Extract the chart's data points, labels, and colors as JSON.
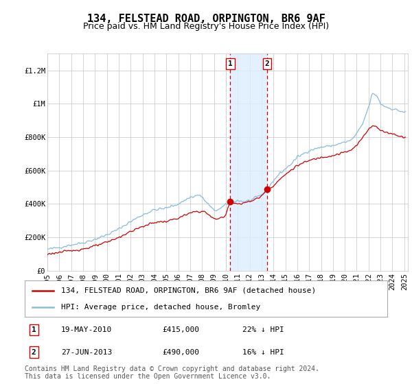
{
  "title": "134, FELSTEAD ROAD, ORPINGTON, BR6 9AF",
  "subtitle": "Price paid vs. HM Land Registry's House Price Index (HPI)",
  "ylim": [
    0,
    1300000
  ],
  "yticks": [
    0,
    200000,
    400000,
    600000,
    800000,
    1000000,
    1200000
  ],
  "ytick_labels": [
    "£0",
    "£200K",
    "£400K",
    "£600K",
    "£800K",
    "£1M",
    "£1.2M"
  ],
  "x_start_year": 1995,
  "x_end_year": 2025,
  "t1_year": 2010.375,
  "t2_year": 2013.458,
  "t1_price": 415000,
  "t2_price": 490000,
  "line_color_price": "#cc0000",
  "line_color_hpi": "#88bbdd",
  "shade_color": "#ddeeff",
  "vline_color": "#cc0000",
  "legend_label_price": "134, FELSTEAD ROAD, ORPINGTON, BR6 9AF (detached house)",
  "legend_label_hpi": "HPI: Average price, detached house, Bromley",
  "footer_text": "Contains HM Land Registry data © Crown copyright and database right 2024.\nThis data is licensed under the Open Government Licence v3.0.",
  "background_color": "#ffffff",
  "grid_color": "#cccccc",
  "title_fontsize": 11,
  "subtitle_fontsize": 9,
  "tick_fontsize": 7.5,
  "legend_fontsize": 8,
  "footer_fontsize": 7
}
